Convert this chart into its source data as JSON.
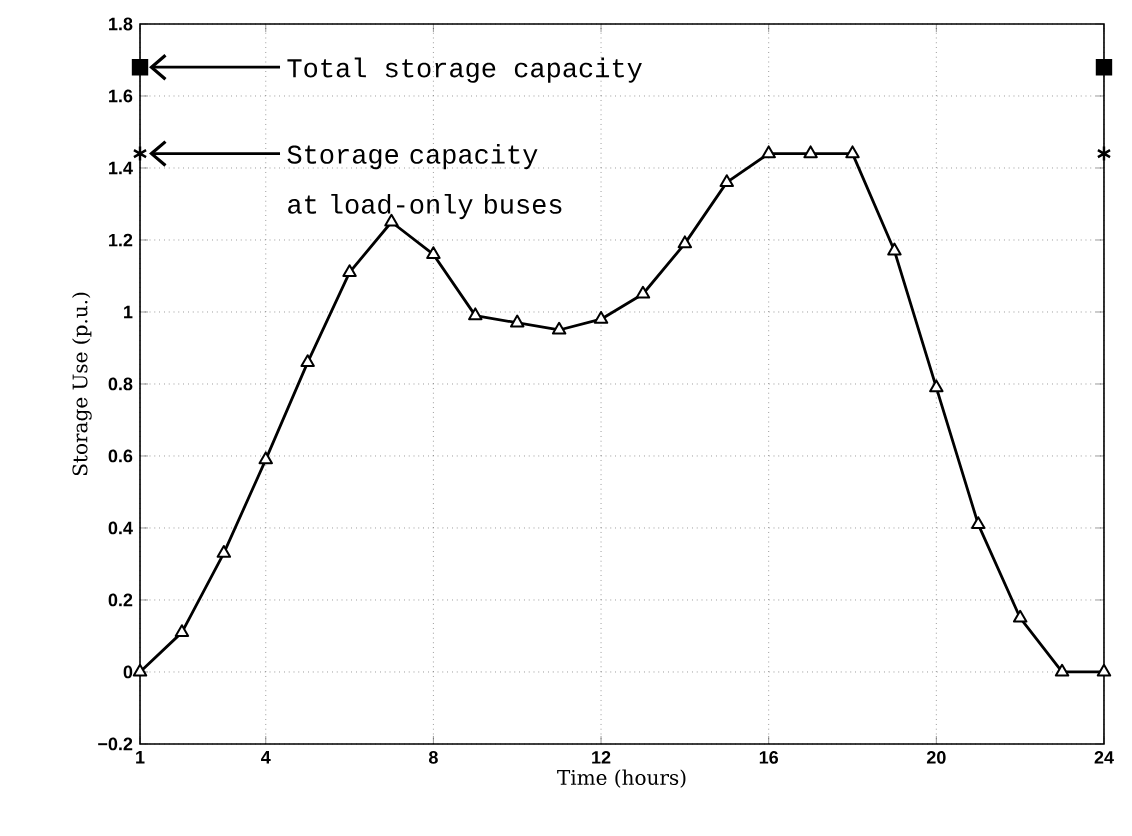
{
  "chart_data": {
    "type": "line",
    "xlabel": "Time (hours)",
    "ylabel": "Storage Use (p.u.)",
    "xlim": [
      1,
      24
    ],
    "ylim": [
      -0.2,
      1.8
    ],
    "xticks": [
      1,
      4,
      8,
      12,
      16,
      20,
      24
    ],
    "yticks": [
      {
        "value": -0.2,
        "label": "−0.2"
      },
      0,
      0.2,
      0.4,
      0.6,
      0.8,
      1,
      1.2,
      1.4,
      1.6,
      1.8
    ],
    "grid": true,
    "series": [
      {
        "type": "line",
        "color": "#000000",
        "marker": "triangle",
        "line_style": "solid",
        "x": [
          1,
          2,
          3,
          4,
          5,
          6,
          7,
          8,
          9,
          10,
          11,
          12,
          13,
          14,
          15,
          16,
          17,
          18,
          19,
          20,
          21,
          22,
          23,
          24
        ],
        "values": [
          0,
          0.11,
          0.33,
          0.59,
          0.86,
          1.11,
          1.25,
          1.16,
          0.99,
          0.97,
          0.95,
          0.98,
          1.05,
          1.19,
          1.36,
          1.44,
          1.44,
          1.44,
          1.17,
          0.79,
          0.41,
          0.15,
          0,
          0
        ]
      },
      {
        "type": "scatter",
        "color": "#000000",
        "marker": "square",
        "x": [
          1,
          24
        ],
        "values": [
          1.68,
          1.68
        ]
      },
      {
        "type": "scatter",
        "color": "#000000",
        "marker": "cross",
        "x": [
          1,
          24
        ],
        "values": [
          1.44,
          1.44
        ]
      }
    ],
    "annotations": [
      "Total storage capacity",
      "Storage capacity at load-only buses"
    ]
  }
}
